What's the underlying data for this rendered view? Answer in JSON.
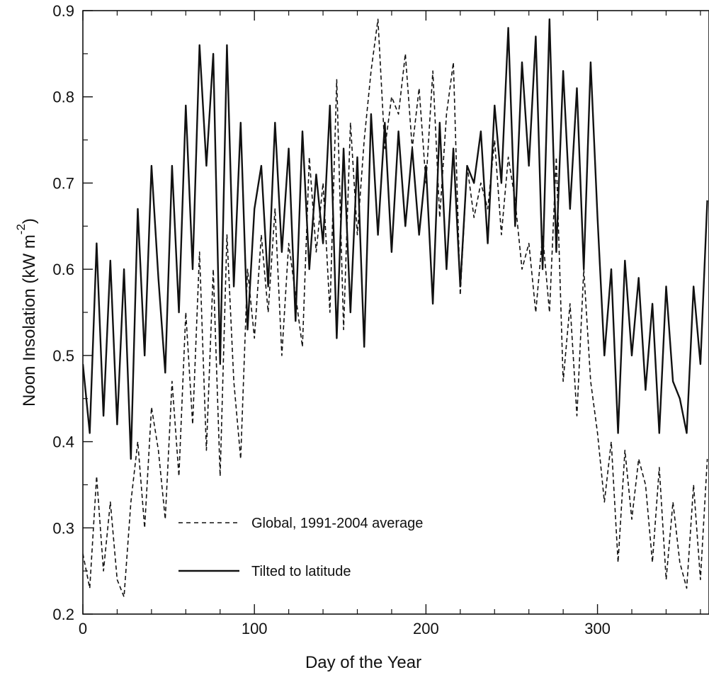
{
  "chart_data": {
    "type": "line",
    "title": "",
    "xlabel": "Day of the Year",
    "ylabel": "Noon Insolation (kW m",
    "ylabel_superscript": "-2",
    "ylabel_suffix": ")",
    "xlim": [
      0,
      365
    ],
    "ylim": [
      0.2,
      0.9
    ],
    "xticks": [
      0,
      100,
      200,
      300
    ],
    "xtick_labels": [
      "0",
      "100",
      "200",
      "300"
    ],
    "yticks": [
      0.2,
      0.3,
      0.4,
      0.5,
      0.6,
      0.7,
      0.8,
      0.9
    ],
    "ytick_labels": [
      "0.2",
      "0.3",
      "0.4",
      "0.5",
      "0.6",
      "0.7",
      "0.8",
      "0.9"
    ],
    "grid": false,
    "legend_position": "bottom-left",
    "series": [
      {
        "name": "Global, 1991-2004 average",
        "style": "dashed",
        "color": "#111111",
        "x": [
          0,
          4,
          8,
          12,
          16,
          20,
          24,
          28,
          32,
          36,
          40,
          44,
          48,
          52,
          56,
          60,
          64,
          68,
          72,
          76,
          80,
          84,
          88,
          92,
          96,
          100,
          104,
          108,
          112,
          116,
          120,
          124,
          128,
          132,
          136,
          140,
          144,
          148,
          152,
          156,
          160,
          164,
          168,
          172,
          176,
          180,
          184,
          188,
          192,
          196,
          200,
          204,
          208,
          212,
          216,
          220,
          224,
          228,
          232,
          236,
          240,
          244,
          248,
          252,
          256,
          260,
          264,
          268,
          272,
          276,
          280,
          284,
          288,
          292,
          296,
          300,
          304,
          308,
          312,
          316,
          320,
          324,
          328,
          332,
          336,
          340,
          344,
          348,
          352,
          356,
          360,
          364
        ],
        "y": [
          0.27,
          0.23,
          0.36,
          0.25,
          0.33,
          0.24,
          0.22,
          0.33,
          0.4,
          0.3,
          0.44,
          0.39,
          0.31,
          0.47,
          0.36,
          0.55,
          0.42,
          0.62,
          0.39,
          0.6,
          0.36,
          0.64,
          0.47,
          0.38,
          0.6,
          0.52,
          0.64,
          0.55,
          0.67,
          0.5,
          0.63,
          0.57,
          0.51,
          0.73,
          0.62,
          0.7,
          0.55,
          0.82,
          0.53,
          0.77,
          0.64,
          0.75,
          0.83,
          0.89,
          0.74,
          0.8,
          0.78,
          0.85,
          0.74,
          0.81,
          0.7,
          0.83,
          0.66,
          0.78,
          0.84,
          0.57,
          0.72,
          0.66,
          0.7,
          0.67,
          0.75,
          0.64,
          0.73,
          0.68,
          0.6,
          0.63,
          0.55,
          0.64,
          0.55,
          0.73,
          0.47,
          0.56,
          0.43,
          0.6,
          0.47,
          0.41,
          0.33,
          0.4,
          0.26,
          0.39,
          0.31,
          0.38,
          0.35,
          0.26,
          0.37,
          0.24,
          0.33,
          0.26,
          0.23,
          0.35,
          0.24,
          0.38
        ]
      },
      {
        "name": "Tilted to latitude",
        "style": "solid",
        "color": "#111111",
        "x": [
          0,
          4,
          8,
          12,
          16,
          20,
          24,
          28,
          32,
          36,
          40,
          44,
          48,
          52,
          56,
          60,
          64,
          68,
          72,
          76,
          80,
          84,
          88,
          92,
          96,
          100,
          104,
          108,
          112,
          116,
          120,
          124,
          128,
          132,
          136,
          140,
          144,
          148,
          152,
          156,
          160,
          164,
          168,
          172,
          176,
          180,
          184,
          188,
          192,
          196,
          200,
          204,
          208,
          212,
          216,
          220,
          224,
          228,
          232,
          236,
          240,
          244,
          248,
          252,
          256,
          260,
          264,
          268,
          272,
          276,
          280,
          284,
          288,
          292,
          296,
          300,
          304,
          308,
          312,
          316,
          320,
          324,
          328,
          332,
          336,
          340,
          344,
          348,
          352,
          356,
          360,
          364
        ],
        "y": [
          0.49,
          0.41,
          0.63,
          0.43,
          0.61,
          0.42,
          0.6,
          0.38,
          0.67,
          0.5,
          0.72,
          0.59,
          0.48,
          0.72,
          0.55,
          0.79,
          0.6,
          0.86,
          0.72,
          0.85,
          0.49,
          0.86,
          0.58,
          0.77,
          0.53,
          0.67,
          0.72,
          0.58,
          0.77,
          0.62,
          0.74,
          0.54,
          0.76,
          0.6,
          0.71,
          0.63,
          0.79,
          0.52,
          0.74,
          0.55,
          0.73,
          0.51,
          0.78,
          0.64,
          0.77,
          0.62,
          0.76,
          0.65,
          0.74,
          0.64,
          0.72,
          0.56,
          0.77,
          0.6,
          0.74,
          0.58,
          0.72,
          0.7,
          0.76,
          0.63,
          0.79,
          0.7,
          0.88,
          0.65,
          0.84,
          0.72,
          0.87,
          0.6,
          0.89,
          0.62,
          0.83,
          0.67,
          0.81,
          0.6,
          0.84,
          0.66,
          0.5,
          0.6,
          0.41,
          0.61,
          0.5,
          0.59,
          0.46,
          0.56,
          0.41,
          0.58,
          0.47,
          0.45,
          0.41,
          0.58,
          0.49,
          0.68
        ]
      }
    ]
  }
}
